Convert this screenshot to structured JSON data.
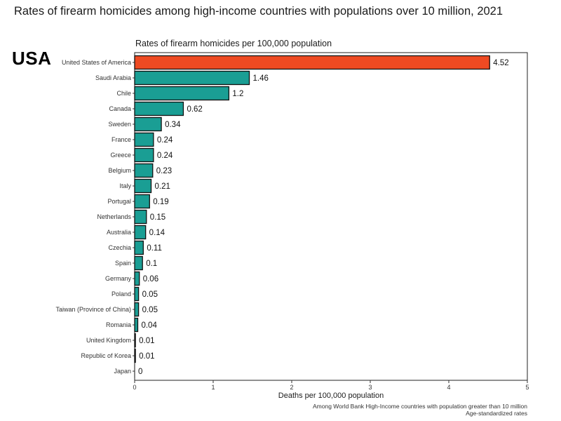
{
  "header": {
    "title": "Rates of firearm homicides among high-income countries with populations over 10 million, 2021",
    "highlight_label": "USA"
  },
  "chart_data": {
    "type": "bar",
    "orientation": "horizontal",
    "title": "Rates of firearm homicides per 100,000 population",
    "xlabel": "Deaths per 100,000 population",
    "ylabel": "",
    "xlim": [
      0,
      5
    ],
    "xticks": [
      0,
      1,
      2,
      3,
      4,
      5
    ],
    "categories": [
      "United States of America",
      "Saudi Arabia",
      "Chile",
      "Canada",
      "Sweden",
      "France",
      "Greece",
      "Belgium",
      "Italy",
      "Portugal",
      "Netherlands",
      "Australia",
      "Czechia",
      "Spain",
      "Germany",
      "Poland",
      "Taiwan (Province of China)",
      "Romania",
      "United Kingdom",
      "Republic of Korea",
      "Japan"
    ],
    "values": [
      4.52,
      1.46,
      1.2,
      0.62,
      0.34,
      0.24,
      0.24,
      0.23,
      0.21,
      0.19,
      0.15,
      0.14,
      0.11,
      0.1,
      0.06,
      0.05,
      0.05,
      0.04,
      0.01,
      0.01,
      0
    ],
    "value_labels": [
      "4.52",
      "1.46",
      "1.2",
      "0.62",
      "0.34",
      "0.24",
      "0.24",
      "0.23",
      "0.21",
      "0.19",
      "0.15",
      "0.14",
      "0.11",
      "0.1",
      "0.06",
      "0.05",
      "0.05",
      "0.04",
      "0.01",
      "0.01",
      "0"
    ],
    "highlight_category": "United States of America",
    "colors": {
      "bar": "#1a9e94",
      "highlight": "#ee4a22",
      "outline": "#111111"
    },
    "grid": false,
    "legend": "none",
    "footnotes": [
      "Among World Bank High-Income countries with population greater than 10 million",
      "Age-standardized rates"
    ]
  }
}
